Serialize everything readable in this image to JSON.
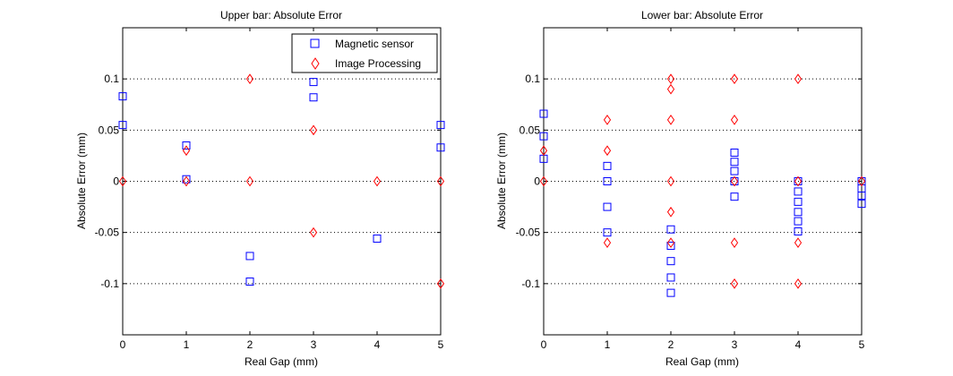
{
  "chart_data": [
    {
      "type": "scatter",
      "title": "Upper bar: Absolute Error",
      "xlabel": "Real Gap (mm)",
      "ylabel": "Absolute Error (mm)",
      "xlim": [
        0,
        5
      ],
      "ylim": [
        -0.15,
        0.15
      ],
      "xticks": [
        0,
        1,
        2,
        3,
        4,
        5
      ],
      "xtick_labels": [
        "0",
        "1",
        "2",
        "3",
        "4",
        "5"
      ],
      "yticks": [
        -0.1,
        -0.05,
        0,
        0.05,
        0.1
      ],
      "ytick_labels": [
        "-0.1",
        "-0.05",
        "0",
        "0.05",
        "0.1"
      ],
      "grid": "horizontal dotted",
      "legend": {
        "placement": "top-right",
        "entries": [
          "Magnetic sensor",
          "Image Processing"
        ]
      },
      "series": [
        {
          "name": "Magnetic sensor",
          "marker": "square",
          "color": "#0000ff",
          "points": [
            [
              0,
              0.083
            ],
            [
              0,
              0.055
            ],
            [
              1,
              0.035
            ],
            [
              1,
              0.002
            ],
            [
              2,
              -0.073
            ],
            [
              2,
              -0.098
            ],
            [
              3,
              0.097
            ],
            [
              3,
              0.082
            ],
            [
              4,
              -0.056
            ],
            [
              5,
              0.055
            ],
            [
              5,
              0.033
            ]
          ]
        },
        {
          "name": "Image Processing",
          "marker": "diamond",
          "color": "#ff0000",
          "points": [
            [
              0,
              0
            ],
            [
              1,
              0.03
            ],
            [
              1,
              0
            ],
            [
              2,
              0.1
            ],
            [
              2,
              0
            ],
            [
              3,
              0.05
            ],
            [
              3,
              -0.05
            ],
            [
              4,
              0
            ],
            [
              5,
              0
            ],
            [
              5,
              -0.1
            ]
          ]
        }
      ]
    },
    {
      "type": "scatter",
      "title": "Lower bar: Absolute Error",
      "xlabel": "Real Gap (mm)",
      "ylabel": "Absolute Error (mm)",
      "xlim": [
        0,
        5
      ],
      "ylim": [
        -0.15,
        0.15
      ],
      "xticks": [
        0,
        1,
        2,
        3,
        4,
        5
      ],
      "xtick_labels": [
        "0",
        "1",
        "2",
        "3",
        "4",
        "5"
      ],
      "yticks": [
        -0.1,
        -0.05,
        0,
        0.05,
        0.1
      ],
      "ytick_labels": [
        "-0.1",
        "-0.05",
        "0",
        "0.05",
        "0.1"
      ],
      "grid": "horizontal dotted",
      "series": [
        {
          "name": "Magnetic sensor",
          "marker": "square",
          "color": "#0000ff",
          "points": [
            [
              0,
              0.066
            ],
            [
              0,
              0.044
            ],
            [
              0,
              0.022
            ],
            [
              1,
              0.015
            ],
            [
              1,
              0
            ],
            [
              1,
              -0.025
            ],
            [
              1,
              -0.05
            ],
            [
              2,
              -0.047
            ],
            [
              2,
              -0.063
            ],
            [
              2,
              -0.078
            ],
            [
              2,
              -0.094
            ],
            [
              2,
              -0.109
            ],
            [
              3,
              0.028
            ],
            [
              3,
              0.019
            ],
            [
              3,
              0.01
            ],
            [
              3,
              0
            ],
            [
              3,
              -0.015
            ],
            [
              4,
              0
            ],
            [
              4,
              -0.01
            ],
            [
              4,
              -0.02
            ],
            [
              4,
              -0.03
            ],
            [
              4,
              -0.039
            ],
            [
              4,
              -0.049
            ],
            [
              5,
              0
            ],
            [
              5,
              -0.007
            ],
            [
              5,
              -0.014
            ],
            [
              5,
              -0.022
            ]
          ]
        },
        {
          "name": "Image Processing",
          "marker": "diamond",
          "color": "#ff0000",
          "points": [
            [
              0,
              0.03
            ],
            [
              0,
              0
            ],
            [
              1,
              0.06
            ],
            [
              1,
              0.03
            ],
            [
              1,
              -0.06
            ],
            [
              2,
              0.1
            ],
            [
              2,
              0.09
            ],
            [
              2,
              0.06
            ],
            [
              2,
              0
            ],
            [
              2,
              -0.03
            ],
            [
              2,
              -0.06
            ],
            [
              3,
              0.1
            ],
            [
              3,
              0.06
            ],
            [
              3,
              0
            ],
            [
              3,
              -0.06
            ],
            [
              3,
              -0.1
            ],
            [
              4,
              0.1
            ],
            [
              4,
              0
            ],
            [
              4,
              -0.06
            ],
            [
              4,
              -0.1
            ],
            [
              5,
              0
            ]
          ]
        }
      ]
    }
  ]
}
